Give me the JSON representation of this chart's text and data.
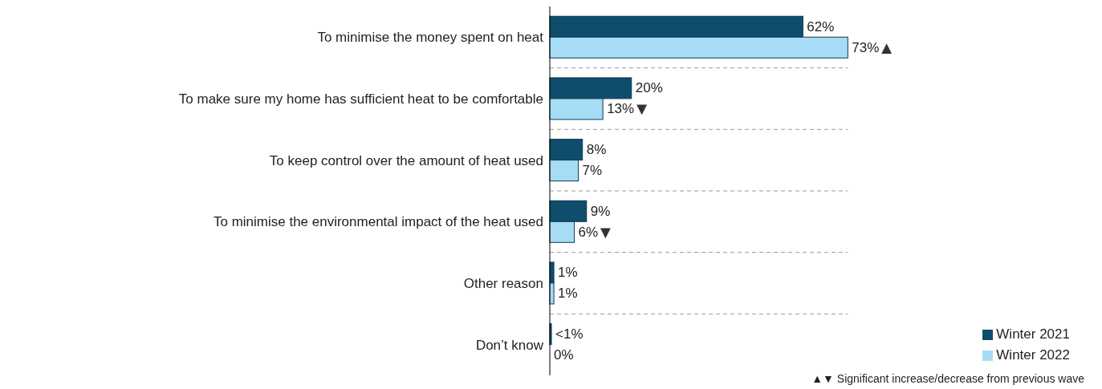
{
  "chart_data": {
    "type": "bar",
    "orientation": "horizontal",
    "categories": [
      "To minimise the money spent on heat",
      "To make sure my home has sufficient heat to be comfortable",
      "To keep control over the amount of heat used",
      "To minimise the environmental impact of the heat used",
      "Other reason",
      "Don’t know"
    ],
    "series": [
      {
        "name": "Winter 2021",
        "color": "#0e4d6b",
        "values": [
          62,
          20,
          8,
          9,
          1,
          0.4
        ],
        "value_labels": [
          "62%",
          "20%",
          "8%",
          "9%",
          "1%",
          "<1%"
        ]
      },
      {
        "name": "Winter 2022",
        "color": "#a6dcf5",
        "values": [
          73,
          13,
          7,
          6,
          1,
          0
        ],
        "value_labels": [
          "73%",
          "13%",
          "7%",
          "6%",
          "1%",
          "0%"
        ]
      }
    ],
    "annotations": [
      {
        "text": "▲",
        "x": 73,
        "y": "To minimise the money spent on heat"
      },
      {
        "text": "▼",
        "x": 13,
        "y": "To make sure my home has sufficient heat to be comfortable"
      },
      {
        "text": "▼",
        "x": 6,
        "y": "To minimise the environmental impact of the heat used"
      },
      "▲▼ Significant increase/decrease from previous wave"
    ],
    "grid": "y",
    "legend": "bottom right"
  }
}
